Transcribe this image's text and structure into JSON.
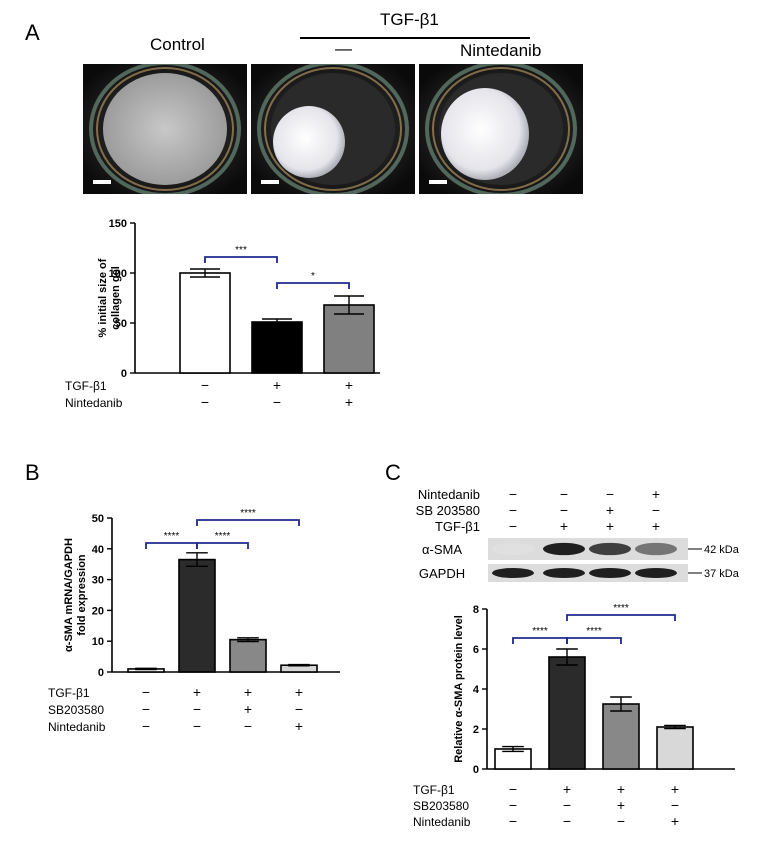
{
  "panelA": {
    "letter": "A",
    "labels": {
      "control": "Control",
      "tgf": "TGF-β1",
      "dash": "—",
      "nintedanib": "Nintedanib"
    },
    "chart_data": {
      "type": "bar",
      "ylabel": "% initial size of collagen gel",
      "ylim": [
        0,
        150
      ],
      "yticks": [
        0,
        50,
        100,
        150
      ],
      "values": [
        100,
        51,
        68
      ],
      "errors": [
        4,
        3,
        9
      ],
      "colors": [
        "#ffffff",
        "#000000",
        "#808080"
      ],
      "treatments": [
        {
          "name": "TGF-β1",
          "marks": [
            "−",
            "+",
            "+"
          ]
        },
        {
          "name": "Nintedanib",
          "marks": [
            "−",
            "−",
            "+"
          ]
        }
      ],
      "significance": [
        {
          "from": 0,
          "to": 1,
          "label": "***"
        },
        {
          "from": 1,
          "to": 2,
          "label": "*"
        }
      ]
    }
  },
  "panelB": {
    "letter": "B",
    "chart_data": {
      "type": "bar",
      "ylabel": "α-SMA mRNA/GAPDH fold expression",
      "ylim": [
        0,
        50
      ],
      "yticks": [
        0,
        10,
        20,
        30,
        40,
        50
      ],
      "values": [
        1,
        36.5,
        10.5,
        2.2
      ],
      "errors": [
        0.2,
        2.2,
        0.6,
        0.2
      ],
      "colors": [
        "#ffffff",
        "#2b2b2b",
        "#888888",
        "#d8d8d8"
      ],
      "treatments": [
        {
          "name": "TGF-β1",
          "marks": [
            "−",
            "+",
            "+",
            "+"
          ]
        },
        {
          "name": "SB203580",
          "marks": [
            "−",
            "−",
            "+",
            "−"
          ]
        },
        {
          "name": "Nintedanib",
          "marks": [
            "−",
            "−",
            "−",
            "+"
          ]
        }
      ],
      "significance": [
        {
          "from": 0,
          "to": 1,
          "label": "****"
        },
        {
          "from": 1,
          "to": 2,
          "label": "****"
        },
        {
          "from": 1,
          "to": 3,
          "label": "****"
        }
      ]
    }
  },
  "panelC": {
    "letter": "C",
    "blot": {
      "treatments": [
        {
          "name": "Nintedanib",
          "marks": [
            "−",
            "−",
            "−",
            "+"
          ]
        },
        {
          "name": "SB 203580",
          "marks": [
            "−",
            "−",
            "+",
            "−"
          ]
        },
        {
          "name": "TGF-β1",
          "marks": [
            "−",
            "+",
            "+",
            "+"
          ]
        }
      ],
      "bands": [
        {
          "name": "α-SMA",
          "size": "42 kDa",
          "intensity": [
            0.05,
            0.95,
            0.8,
            0.55
          ]
        },
        {
          "name": "GAPDH",
          "size": "37 kDa",
          "intensity": [
            0.95,
            0.95,
            0.95,
            0.95
          ]
        }
      ]
    },
    "chart_data": {
      "type": "bar",
      "ylabel": "Relative α-SMA protein  level",
      "ylim": [
        0,
        8
      ],
      "yticks": [
        0,
        2,
        4,
        6,
        8
      ],
      "values": [
        1,
        5.6,
        3.25,
        2.1
      ],
      "errors": [
        0.12,
        0.4,
        0.35,
        0.08
      ],
      "colors": [
        "#ffffff",
        "#2b2b2b",
        "#888888",
        "#d8d8d8"
      ],
      "treatments": [
        {
          "name": "TGF-β1",
          "marks": [
            "−",
            "+",
            "+",
            "+"
          ]
        },
        {
          "name": "SB203580",
          "marks": [
            "−",
            "−",
            "+",
            "−"
          ]
        },
        {
          "name": "Nintedanib",
          "marks": [
            "−",
            "−",
            "−",
            "+"
          ]
        }
      ],
      "significance": [
        {
          "from": 0,
          "to": 1,
          "label": "****"
        },
        {
          "from": 1,
          "to": 2,
          "label": "****"
        },
        {
          "from": 1,
          "to": 3,
          "label": "****"
        }
      ]
    }
  }
}
